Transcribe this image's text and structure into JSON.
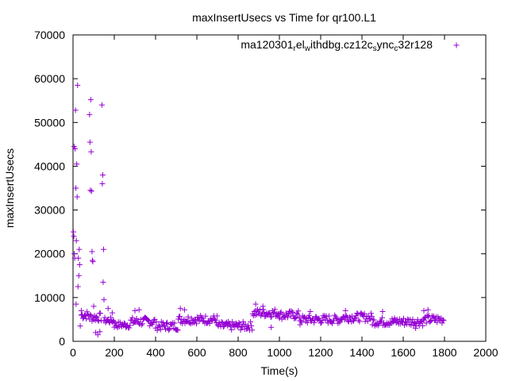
{
  "chart_data": {
    "type": "scatter",
    "title": "maxInsertUsecs vs Time for qr100.L1",
    "xlabel": "Time(s)",
    "ylabel": "maxInsertUsecs",
    "xlim": [
      0,
      2000
    ],
    "ylim": [
      0,
      70000
    ],
    "xticks": [
      "0",
      "200",
      "400",
      "600",
      "800",
      "1000",
      "1200",
      "1400",
      "1600",
      "1800",
      "2000"
    ],
    "yticks": [
      "0",
      "10000",
      "20000",
      "30000",
      "40000",
      "50000",
      "60000",
      "70000"
    ],
    "legend_position": "top-right",
    "grid": false,
    "series": [
      {
        "name_parts": [
          {
            "text": "ma120301",
            "sub": false
          },
          {
            "text": "r",
            "sub": true
          },
          {
            "text": "el",
            "sub": false
          },
          {
            "text": "w",
            "sub": true
          },
          {
            "text": "ithdbg.cz12c",
            "sub": false
          },
          {
            "text": "s",
            "sub": true
          },
          {
            "text": "ync",
            "sub": false
          },
          {
            "text": "c",
            "sub": true
          },
          {
            "text": "32r128",
            "sub": false
          }
        ],
        "color": "#9400d3",
        "marker": "plus",
        "outliers": [
          [
            2,
            25000
          ],
          [
            4,
            24000
          ],
          [
            5,
            44500
          ],
          [
            6,
            20000
          ],
          [
            8,
            19000
          ],
          [
            10,
            44000
          ],
          [
            12,
            52800
          ],
          [
            14,
            35000
          ],
          [
            16,
            23000
          ],
          [
            18,
            40500
          ],
          [
            20,
            33000
          ],
          [
            22,
            58500
          ],
          [
            24,
            12500
          ],
          [
            26,
            19000
          ],
          [
            28,
            15000
          ],
          [
            30,
            21000
          ],
          [
            32,
            17500
          ],
          [
            35,
            3500
          ],
          [
            15,
            8500
          ],
          [
            40,
            7000
          ],
          [
            80,
            51800
          ],
          [
            82,
            45500
          ],
          [
            84,
            34500
          ],
          [
            86,
            55200
          ],
          [
            88,
            43300
          ],
          [
            90,
            34300
          ],
          [
            92,
            20500
          ],
          [
            94,
            18500
          ],
          [
            96,
            18200
          ],
          [
            140,
            54000
          ],
          [
            142,
            36000
          ],
          [
            144,
            38000
          ],
          [
            146,
            13500
          ],
          [
            148,
            21000
          ],
          [
            150,
            9500
          ],
          [
            110,
            2000
          ],
          [
            120,
            1500
          ],
          [
            130,
            2200
          ],
          [
            100,
            8000
          ]
        ],
        "bands": [
          {
            "x": [
              40,
              80
            ],
            "y": [
              5000,
              7000
            ]
          },
          {
            "x": [
              80,
              140
            ],
            "y": [
              4500,
              6500
            ]
          },
          {
            "x": [
              150,
              200
            ],
            "y": [
              4000,
              5500
            ]
          },
          {
            "x": [
              200,
              280
            ],
            "y": [
              3000,
              4500
            ]
          },
          {
            "x": [
              280,
              400
            ],
            "y": [
              3500,
              5500
            ]
          },
          {
            "x": [
              400,
              510
            ],
            "y": [
              2500,
              4500
            ]
          },
          {
            "x": [
              510,
              700
            ],
            "y": [
              4000,
              6000
            ]
          },
          {
            "x": [
              700,
              870
            ],
            "y": [
              2500,
              4500
            ]
          },
          {
            "x": [
              870,
              1000
            ],
            "y": [
              5500,
              7500
            ]
          },
          {
            "x": [
              1000,
              1100
            ],
            "y": [
              5000,
              7000
            ]
          },
          {
            "x": [
              1100,
              1300
            ],
            "y": [
              4000,
              6000
            ]
          },
          {
            "x": [
              1300,
              1450
            ],
            "y": [
              4500,
              6500
            ]
          },
          {
            "x": [
              1450,
              1700
            ],
            "y": [
              3500,
              5500
            ]
          },
          {
            "x": [
              1700,
              1800
            ],
            "y": [
              4000,
              6000
            ]
          }
        ],
        "extra_points": [
          [
            170,
            7500
          ],
          [
            190,
            6500
          ],
          [
            300,
            7000
          ],
          [
            320,
            7200
          ],
          [
            520,
            7500
          ],
          [
            540,
            7200
          ],
          [
            885,
            8500
          ],
          [
            920,
            8000
          ],
          [
            960,
            3200
          ],
          [
            1100,
            3800
          ],
          [
            1150,
            6800
          ],
          [
            1320,
            7000
          ],
          [
            1500,
            6800
          ],
          [
            1660,
            3000
          ],
          [
            1700,
            7000
          ],
          [
            1720,
            7200
          ]
        ]
      }
    ]
  }
}
